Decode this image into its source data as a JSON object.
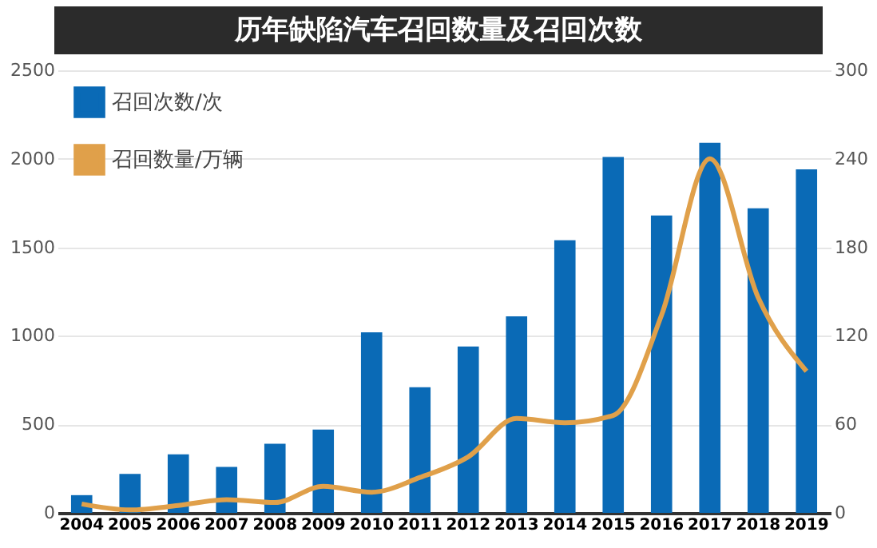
{
  "chart_data": {
    "type": "bar",
    "title": "历年缺陷汽车召回数量及召回次数",
    "categories": [
      "2004",
      "2005",
      "2006",
      "2007",
      "2008",
      "2009",
      "2010",
      "2011",
      "2012",
      "2013",
      "2014",
      "2015",
      "2016",
      "2017",
      "2018",
      "2019"
    ],
    "series": [
      {
        "name": "召回次数/次",
        "color": "#0a6ab6",
        "values": [
          100,
          220,
          330,
          260,
          390,
          470,
          1020,
          710,
          940,
          1110,
          1540,
          2010,
          1680,
          2090,
          1720,
          1940
        ]
      },
      {
        "name": "召回数量/万辆",
        "type": "line",
        "axis": "y2",
        "color": "#e0a04a",
        "values": [
          6,
          2,
          5,
          9,
          7,
          18,
          14,
          24,
          38,
          64,
          61,
          66,
          134,
          240,
          146,
          96
        ]
      }
    ],
    "ylim": [
      0,
      2500
    ],
    "yticks": [
      0,
      500,
      1000,
      1500,
      2000,
      2500
    ],
    "y2lim": [
      0,
      300
    ],
    "y2ticks": [
      0,
      60,
      120,
      180,
      240,
      300
    ],
    "grid": "y",
    "legend": "top left"
  }
}
